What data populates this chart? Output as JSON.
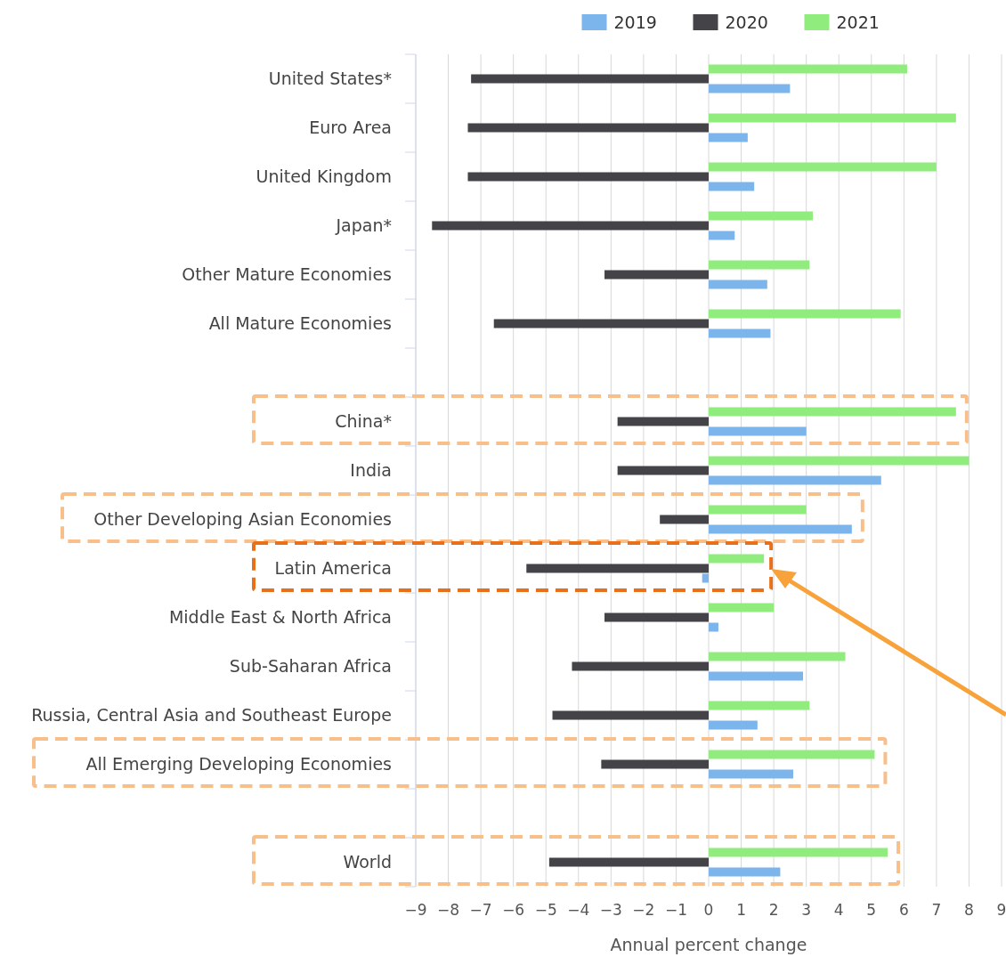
{
  "chart_data": {
    "type": "bar",
    "orientation": "horizontal",
    "xlabel": "Annual percent change",
    "categories": [
      "United States*",
      "Euro Area",
      "United Kingdom",
      "Japan*",
      "Other Mature Economies",
      "All Mature Economies",
      null,
      "China*",
      "India",
      "Other Developing Asian Economies",
      "Latin America",
      "Middle East & North Africa",
      "Sub-Saharan Africa",
      "Russia, Central Asia and Southeast Europe",
      "All Emerging Developing Economies",
      null,
      "World"
    ],
    "series": [
      {
        "name": "2019",
        "color": "#7cb5ec",
        "values": [
          2.5,
          1.2,
          1.4,
          0.8,
          1.8,
          1.9,
          null,
          3.0,
          5.3,
          4.4,
          -0.2,
          0.3,
          2.9,
          1.5,
          2.6,
          null,
          2.2
        ]
      },
      {
        "name": "2020",
        "color": "#434348",
        "values": [
          -7.3,
          -7.4,
          -7.4,
          -8.5,
          -3.2,
          -6.6,
          null,
          -2.8,
          -2.8,
          -1.5,
          -5.6,
          -3.2,
          -4.2,
          -4.8,
          -3.3,
          null,
          -4.9
        ]
      },
      {
        "name": "2021",
        "color": "#90ed7d",
        "values": [
          6.1,
          7.6,
          7.0,
          3.2,
          3.1,
          5.9,
          null,
          7.6,
          8.0,
          3.0,
          1.7,
          2.0,
          4.2,
          3.1,
          5.1,
          null,
          5.5
        ]
      }
    ],
    "xlim": [
      -9,
      9
    ],
    "xticks": [
      -9,
      -8,
      -7,
      -6,
      -5,
      -4,
      -3,
      -2,
      -1,
      0,
      1,
      2,
      3,
      4,
      5,
      6,
      7,
      8,
      9
    ],
    "grid": "x",
    "legend": "top"
  }
}
